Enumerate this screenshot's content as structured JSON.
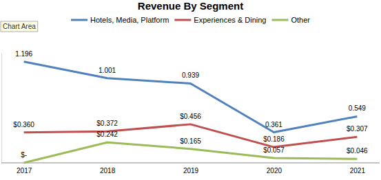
{
  "chart_data": {
    "type": "line",
    "title": "Revenue By Segment",
    "categories": [
      "2017",
      "2018",
      "2019",
      "2020",
      "2021"
    ],
    "series": [
      {
        "name": "Hotels, Media, Platform",
        "color": "#4F81BD",
        "values": [
          1.196,
          1.001,
          0.939,
          0.361,
          0.549
        ]
      },
      {
        "name": "Experiences & Dining",
        "color": "#C0504D",
        "values": [
          0.36,
          0.372,
          0.456,
          0.186,
          0.307
        ],
        "value_labels": [
          "$0.360",
          "$0.372",
          "$0.456",
          "$0.186",
          "$0.307"
        ]
      },
      {
        "name": "Other",
        "color": "#9BBB59",
        "values": [
          0,
          0.242,
          0.165,
          0.057,
          0.046
        ],
        "value_labels": [
          "$-",
          "$0.242",
          "$0.165",
          "$0.057",
          "$0.046"
        ]
      }
    ],
    "ylim": [
      0,
      1.3
    ],
    "legend": "top",
    "data_labels": true,
    "tick_labels": "x",
    "grid": false,
    "annotations": [
      "Chart Area"
    ]
  }
}
